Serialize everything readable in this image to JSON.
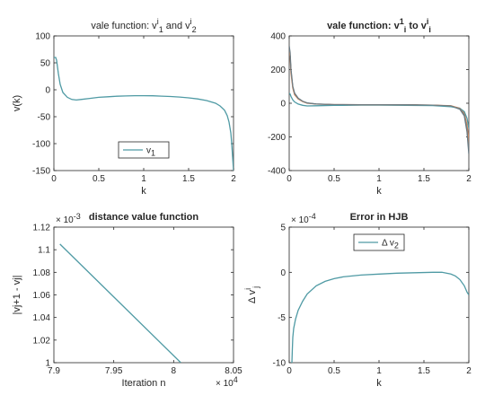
{
  "chart_data": [
    {
      "type": "line",
      "title": "vale function: v",
      "title_sup": "i",
      "title_sub": "1",
      "title_mid": " and v",
      "title_sup2": "i",
      "title_sub2": "2",
      "xlabel": "k",
      "ylabel": "v(k)",
      "xlim": [
        0,
        2
      ],
      "ylim": [
        -150,
        100
      ],
      "xticks": [
        0,
        0.5,
        1,
        1.5,
        2
      ],
      "xtick_labels": [
        "0",
        "0.5",
        "1",
        "1.5",
        "2"
      ],
      "yticks": [
        100,
        50,
        0,
        -50,
        -100,
        -150
      ],
      "ytick_labels": [
        "100",
        "50",
        "0",
        "-50",
        "-100",
        "-150"
      ],
      "legend": {
        "label": "v",
        "sub": "1",
        "placement": "bottom-center"
      },
      "series": [
        {
          "name": "v1",
          "color": "#4f9aa4",
          "x": [
            0.0,
            0.02,
            0.03,
            0.05,
            0.07,
            0.1,
            0.15,
            0.2,
            0.25,
            0.3,
            0.4,
            0.5,
            0.6,
            0.7,
            0.8,
            0.9,
            1.0,
            1.1,
            1.2,
            1.3,
            1.4,
            1.5,
            1.6,
            1.7,
            1.8,
            1.85,
            1.9,
            1.93,
            1.95,
            1.97,
            1.98,
            1.99,
            2.0
          ],
          "y": [
            60,
            60,
            55,
            30,
            10,
            -5,
            -14,
            -18,
            -19,
            -18,
            -16,
            -14,
            -13,
            -12,
            -11.5,
            -11,
            -11,
            -11.2,
            -11.8,
            -12.5,
            -13.5,
            -15,
            -17,
            -20,
            -25,
            -30,
            -38,
            -48,
            -60,
            -80,
            -100,
            -125,
            -150
          ]
        }
      ]
    },
    {
      "type": "line",
      "title": "vale function: v",
      "title_sup": "1",
      "title_sub": "i",
      "title_mid": " to v",
      "title_sup2": "i",
      "title_sub2": "i",
      "title_bold": true,
      "xlabel": "k",
      "ylabel": "",
      "xlim": [
        0,
        2
      ],
      "ylim": [
        -400,
        400
      ],
      "xticks": [
        0,
        0.5,
        1,
        1.5,
        2
      ],
      "xtick_labels": [
        "0",
        "0.5",
        "1",
        "1.5",
        "2"
      ],
      "yticks": [
        400,
        200,
        0,
        -200,
        -400
      ],
      "ytick_labels": [
        "400",
        "200",
        "0",
        "-200",
        "-400"
      ],
      "series": [
        {
          "name": "",
          "color": "#d9885a",
          "x": [
            0.0,
            0.01,
            0.02,
            0.04,
            0.06,
            0.1,
            0.15,
            0.2,
            0.3,
            0.5,
            0.8,
            1.0,
            1.3,
            1.6,
            1.8,
            1.9,
            1.95,
            1.98,
            2.0
          ],
          "y": [
            300,
            280,
            180,
            90,
            50,
            25,
            10,
            0,
            -5,
            -8,
            -9,
            -9,
            -9,
            -11,
            -15,
            -30,
            -60,
            -130,
            -220
          ]
        },
        {
          "name": "",
          "color": "#5b6f7a",
          "x": [
            0.0,
            0.01,
            0.02,
            0.04,
            0.06,
            0.1,
            0.15,
            0.2,
            0.3,
            0.5,
            0.8,
            1.0,
            1.3,
            1.6,
            1.8,
            1.9,
            1.95,
            1.98,
            2.0
          ],
          "y": [
            340,
            300,
            200,
            100,
            60,
            30,
            12,
            2,
            -4,
            -8,
            -9,
            -9,
            -9,
            -11,
            -16,
            -35,
            -75,
            -170,
            -300
          ]
        },
        {
          "name": "",
          "color": "#4f9aa4",
          "x": [
            0.0,
            0.01,
            0.02,
            0.04,
            0.06,
            0.1,
            0.15,
            0.2,
            0.3,
            0.5,
            0.8,
            1.0,
            1.3,
            1.6,
            1.8,
            1.9,
            1.95,
            1.98,
            2.0
          ],
          "y": [
            60,
            55,
            40,
            20,
            8,
            -5,
            -12,
            -16,
            -15,
            -13,
            -11,
            -11,
            -12,
            -14,
            -20,
            -30,
            -50,
            -90,
            -150
          ]
        }
      ]
    },
    {
      "type": "line",
      "title": "distance value function",
      "title_bold": true,
      "xlabel": "Iteration n",
      "ylabel": "|vj+1 - vj|",
      "xlim": [
        79000,
        80500
      ],
      "ylim": [
        0.001,
        0.00112
      ],
      "x_exponent": "× 10",
      "x_exponent_power": "4",
      "y_exponent": "× 10",
      "y_exponent_power": "-3",
      "xticks": [
        79000,
        79500,
        80000,
        80500
      ],
      "xtick_labels": [
        "7.9",
        "7.95",
        "8",
        "8.05"
      ],
      "yticks": [
        0.00112,
        0.0011,
        0.00108,
        0.00106,
        0.00104,
        0.00102,
        0.001
      ],
      "ytick_labels": [
        "1.12",
        "1.1",
        "1.08",
        "1.06",
        "1.04",
        "1.02",
        "1"
      ],
      "series": [
        {
          "name": "",
          "color": "#4f9aa4",
          "x": [
            79050,
            80060
          ],
          "y": [
            0.001105,
            0.001
          ]
        }
      ]
    },
    {
      "type": "line",
      "title": "Error in HJB",
      "title_bold": true,
      "xlabel": "k",
      "ylabel": "Δ v",
      "ylabel_sup": "i",
      "ylabel_sub": "j",
      "xlim": [
        0,
        2
      ],
      "ylim": [
        -0.001,
        0.0005
      ],
      "y_exponent": "× 10",
      "y_exponent_power": "-4",
      "xticks": [
        0,
        0.5,
        1,
        1.5,
        2
      ],
      "xtick_labels": [
        "0",
        "0.5",
        "1",
        "1.5",
        "2"
      ],
      "yticks": [
        0.0005,
        0,
        -0.0005,
        -0.001
      ],
      "ytick_labels": [
        "5",
        "0",
        "-5",
        "-10"
      ],
      "legend": {
        "label": "Δ v",
        "sub": "2",
        "placement": "top-center"
      },
      "series": [
        {
          "name": "Δ v2",
          "color": "#4f9aa4",
          "x": [
            0.02,
            0.03,
            0.035,
            0.04,
            0.05,
            0.07,
            0.1,
            0.15,
            0.2,
            0.3,
            0.4,
            0.5,
            0.6,
            0.8,
            1.0,
            1.2,
            1.4,
            1.6,
            1.7,
            1.8,
            1.85,
            1.9,
            1.95,
            1.98,
            2.0
          ],
          "y": [
            -0.001,
            -0.001,
            -0.00085,
            -0.00072,
            -0.00062,
            -0.00052,
            -0.00042,
            -0.00032,
            -0.00024,
            -0.00015,
            -0.0001,
            -7e-05,
            -5e-05,
            -3e-05,
            -2e-05,
            -1e-05,
            -5e-06,
            0.0,
            0.0,
            -2e-05,
            -4e-05,
            -8e-05,
            -0.00015,
            -0.00022,
            -0.00025
          ]
        }
      ]
    }
  ]
}
